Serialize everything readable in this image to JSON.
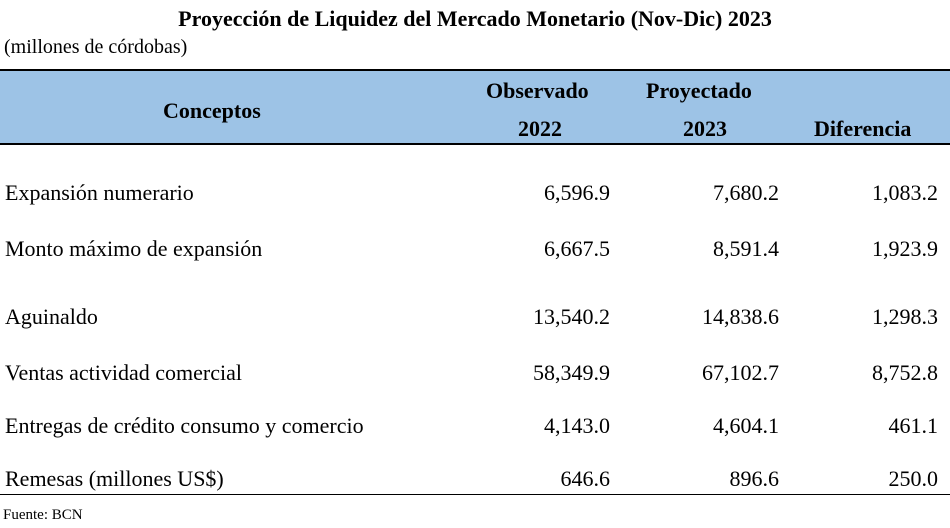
{
  "title": "Proyección de Liquidez del Mercado Monetario (Nov-Dic) 2023",
  "units": "(millones de córdobas)",
  "header": {
    "concepts": "Conceptos",
    "observed": "Observado",
    "observed_year": "2022",
    "projected": "Proyectado",
    "projected_year": "2023",
    "difference": "Diferencia"
  },
  "rows": [
    {
      "concept": "Expansión numerario",
      "observed": "6,596.9",
      "projected": "7,680.2",
      "difference": "1,083.2"
    },
    {
      "concept": "Monto máximo de expansión",
      "observed": "6,667.5",
      "projected": "8,591.4",
      "difference": "1,923.9"
    },
    {
      "concept": "Aguinaldo",
      "observed": "13,540.2",
      "projected": "14,838.6",
      "difference": "1,298.3"
    },
    {
      "concept": "Ventas actividad comercial",
      "observed": "58,349.9",
      "projected": "67,102.7",
      "difference": "8,752.8"
    },
    {
      "concept": "Entregas de crédito consumo y comercio",
      "observed": "4,143.0",
      "projected": "4,604.1",
      "difference": "461.1"
    },
    {
      "concept": "Remesas (millones US$)",
      "observed": "646.6",
      "projected": "896.6",
      "difference": "250.0"
    }
  ],
  "source": "Fuente: BCN",
  "colors": {
    "header_background": "#9dc3e6"
  }
}
